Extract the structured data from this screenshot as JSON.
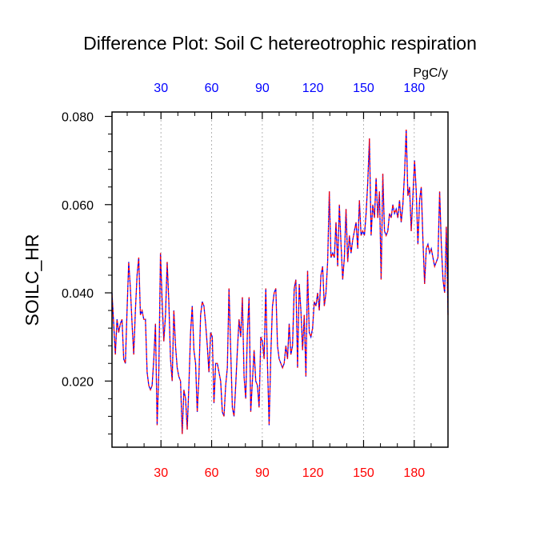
{
  "chart_data": {
    "type": "line",
    "title": "Difference Plot: Soil C hetereotrophic respiration",
    "ylabel": "SOILC_HR",
    "units": "PgC/y",
    "xlim": [
      1,
      200
    ],
    "ylim": [
      0.005,
      0.081
    ],
    "grid": "vertical dotted",
    "y_ticks": [
      "0.020",
      "0.040",
      "0.060",
      "0.080"
    ],
    "y_tick_values": [
      0.02,
      0.04,
      0.06,
      0.08
    ],
    "x_ticks_bottom": [
      "30",
      "60",
      "90",
      "120",
      "150",
      "180"
    ],
    "x_ticks_top": [
      "30",
      "60",
      "90",
      "120",
      "150",
      "180"
    ],
    "x_tick_values": [
      30,
      60,
      90,
      120,
      150,
      180
    ],
    "colors": {
      "bottom_ticks": "#ff0000",
      "top_ticks": "#0000ff",
      "series_a": "#0000ff",
      "series_b": "#ff0000"
    },
    "series": [
      {
        "values": [
          0.04,
          0.033,
          0.026,
          0.034,
          0.031,
          0.033,
          0.034,
          0.025,
          0.024,
          0.036,
          0.047,
          0.041,
          0.033,
          0.026,
          0.036,
          0.044,
          0.048,
          0.035,
          0.036,
          0.034,
          0.034,
          0.022,
          0.019,
          0.018,
          0.019,
          0.025,
          0.033,
          0.01,
          0.022,
          0.049,
          0.038,
          0.029,
          0.035,
          0.047,
          0.038,
          0.025,
          0.02,
          0.036,
          0.028,
          0.023,
          0.021,
          0.02,
          0.008,
          0.018,
          0.016,
          0.009,
          0.019,
          0.031,
          0.037,
          0.027,
          0.024,
          0.013,
          0.021,
          0.035,
          0.038,
          0.037,
          0.033,
          0.028,
          0.022,
          0.031,
          0.03,
          0.015,
          0.024,
          0.024,
          0.022,
          0.02,
          0.013,
          0.012,
          0.019,
          0.023,
          0.041,
          0.027,
          0.014,
          0.012,
          0.019,
          0.027,
          0.034,
          0.03,
          0.039,
          0.021,
          0.016,
          0.031,
          0.039,
          0.013,
          0.02,
          0.027,
          0.02,
          0.019,
          0.014,
          0.03,
          0.029,
          0.025,
          0.041,
          0.024,
          0.01,
          0.026,
          0.037,
          0.04,
          0.041,
          0.028,
          0.025,
          0.024,
          0.023,
          0.024,
          0.028,
          0.025,
          0.033,
          0.026,
          0.028,
          0.041,
          0.043,
          0.023,
          0.042,
          0.036,
          0.027,
          0.035,
          0.021,
          0.045,
          0.031,
          0.03,
          0.032,
          0.038,
          0.037,
          0.04,
          0.036,
          0.044,
          0.046,
          0.037,
          0.04,
          0.047,
          0.063,
          0.048,
          0.049,
          0.048,
          0.056,
          0.046,
          0.06,
          0.051,
          0.043,
          0.048,
          0.059,
          0.047,
          0.053,
          0.049,
          0.052,
          0.054,
          0.056,
          0.05,
          0.061,
          0.053,
          0.054,
          0.053,
          0.058,
          0.065,
          0.075,
          0.053,
          0.06,
          0.057,
          0.066,
          0.057,
          0.063,
          0.043,
          0.067,
          0.054,
          0.053,
          0.054,
          0.058,
          0.057,
          0.06,
          0.058,
          0.059,
          0.057,
          0.061,
          0.056,
          0.06,
          0.067,
          0.077,
          0.062,
          0.064,
          0.054,
          0.062,
          0.07,
          0.063,
          0.051,
          0.061,
          0.064,
          0.052,
          0.042,
          0.05,
          0.051,
          0.049,
          0.05,
          0.048,
          0.046,
          0.047,
          0.048,
          0.063,
          0.051,
          0.043,
          0.04,
          0.055,
          0.035
        ]
      }
    ]
  }
}
